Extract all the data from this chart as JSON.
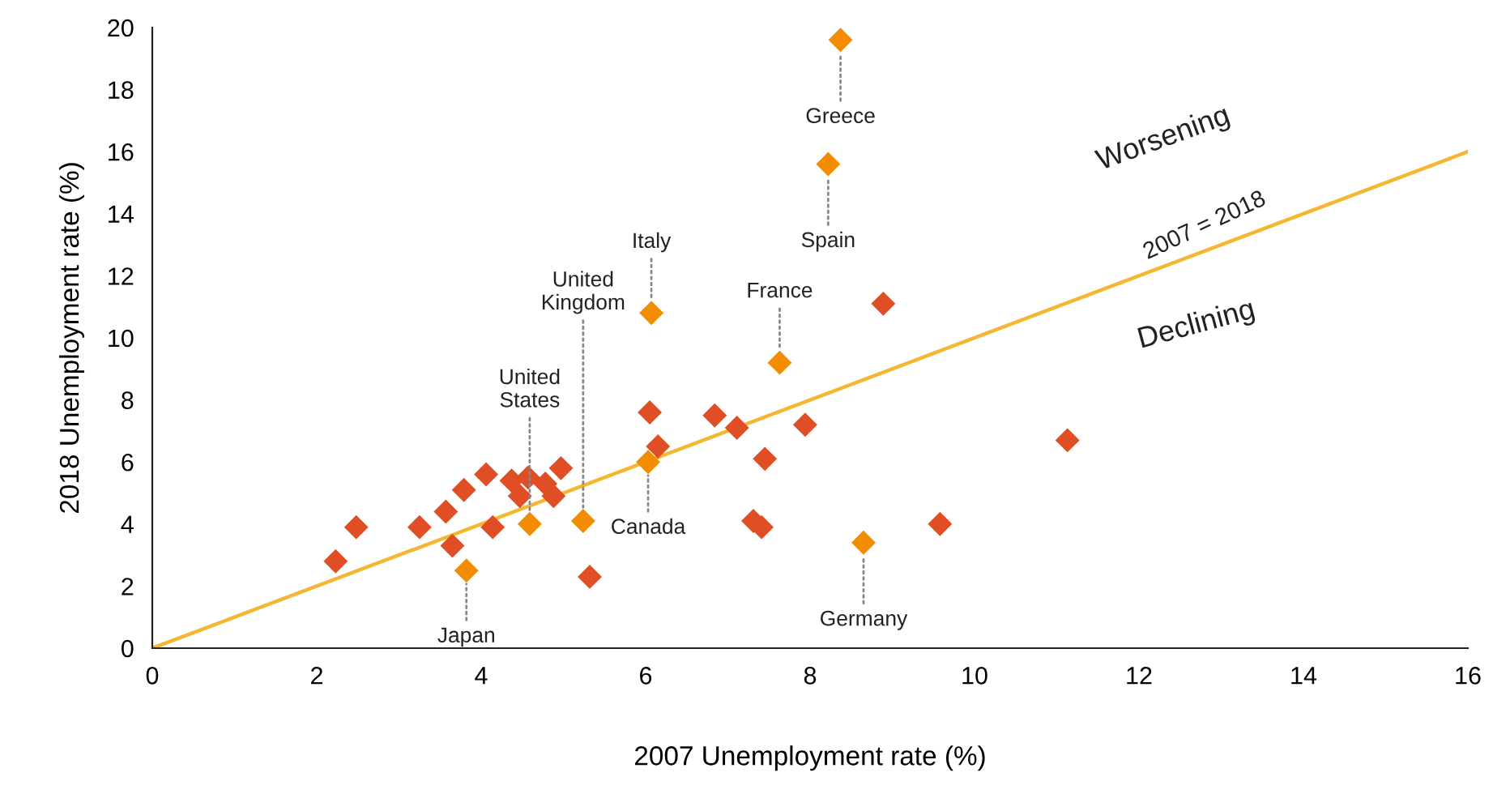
{
  "chart_data": {
    "type": "scatter",
    "xlabel": "2007 Unemployment rate (%)",
    "ylabel": "2018 Unemployment rate (%)",
    "xlim": [
      0,
      16
    ],
    "ylim": [
      0,
      20
    ],
    "xticks": [
      0,
      2,
      4,
      6,
      8,
      10,
      12,
      14,
      16
    ],
    "yticks": [
      0,
      2,
      4,
      6,
      8,
      10,
      12,
      14,
      16,
      18,
      20
    ],
    "grid": false,
    "legend": false,
    "marker": "diamond",
    "series": [
      {
        "type": "line",
        "color": "#f5b731",
        "x": [
          0,
          16
        ],
        "values": [
          0,
          16
        ],
        "marker": "none",
        "line_style": "solid"
      },
      {
        "color": "#e04e25",
        "x": [
          2.23,
          2.48,
          3.25,
          3.57,
          3.79,
          3.65,
          4.06,
          4.14,
          4.37,
          4.57,
          4.97,
          4.78,
          4.88,
          4.47,
          5.32,
          6.05,
          6.15,
          6.84,
          7.11,
          7.45,
          7.31,
          7.41,
          7.94,
          8.89,
          9.58,
          11.13
        ],
        "values": [
          2.8,
          3.9,
          3.9,
          4.4,
          5.1,
          3.3,
          5.6,
          3.9,
          5.4,
          5.5,
          5.8,
          5.3,
          4.9,
          4.9,
          2.3,
          7.6,
          6.5,
          7.5,
          7.1,
          6.1,
          4.1,
          3.9,
          7.2,
          11.1,
          4.0,
          6.7
        ]
      },
      {
        "color": "#f28c00",
        "x": [
          8.37,
          8.22,
          6.07,
          7.63,
          5.24,
          4.59,
          6.03,
          3.82,
          8.65
        ],
        "values": [
          19.6,
          15.6,
          10.8,
          9.2,
          4.1,
          4.0,
          6.0,
          2.5,
          3.4
        ]
      }
    ],
    "annotations": [
      {
        "text": "Greece",
        "x": 8.37,
        "y": 19.6
      },
      {
        "text": "Spain",
        "x": 8.22,
        "y": 15.6
      },
      {
        "text": "Italy",
        "x": 6.07,
        "y": 10.8
      },
      {
        "text": "France",
        "x": 7.63,
        "y": 9.2
      },
      {
        "text": "United\nKingdom",
        "x": 5.24,
        "y": 4.1
      },
      {
        "text": "United\nStates",
        "x": 4.59,
        "y": 4.0
      },
      {
        "text": "Canada",
        "x": 6.03,
        "y": 6.0
      },
      {
        "text": "Japan",
        "x": 3.82,
        "y": 2.5
      },
      {
        "text": "Germany",
        "x": 8.65,
        "y": 3.4
      },
      "Worsening",
      "2007 = 2018",
      "Declining"
    ]
  }
}
